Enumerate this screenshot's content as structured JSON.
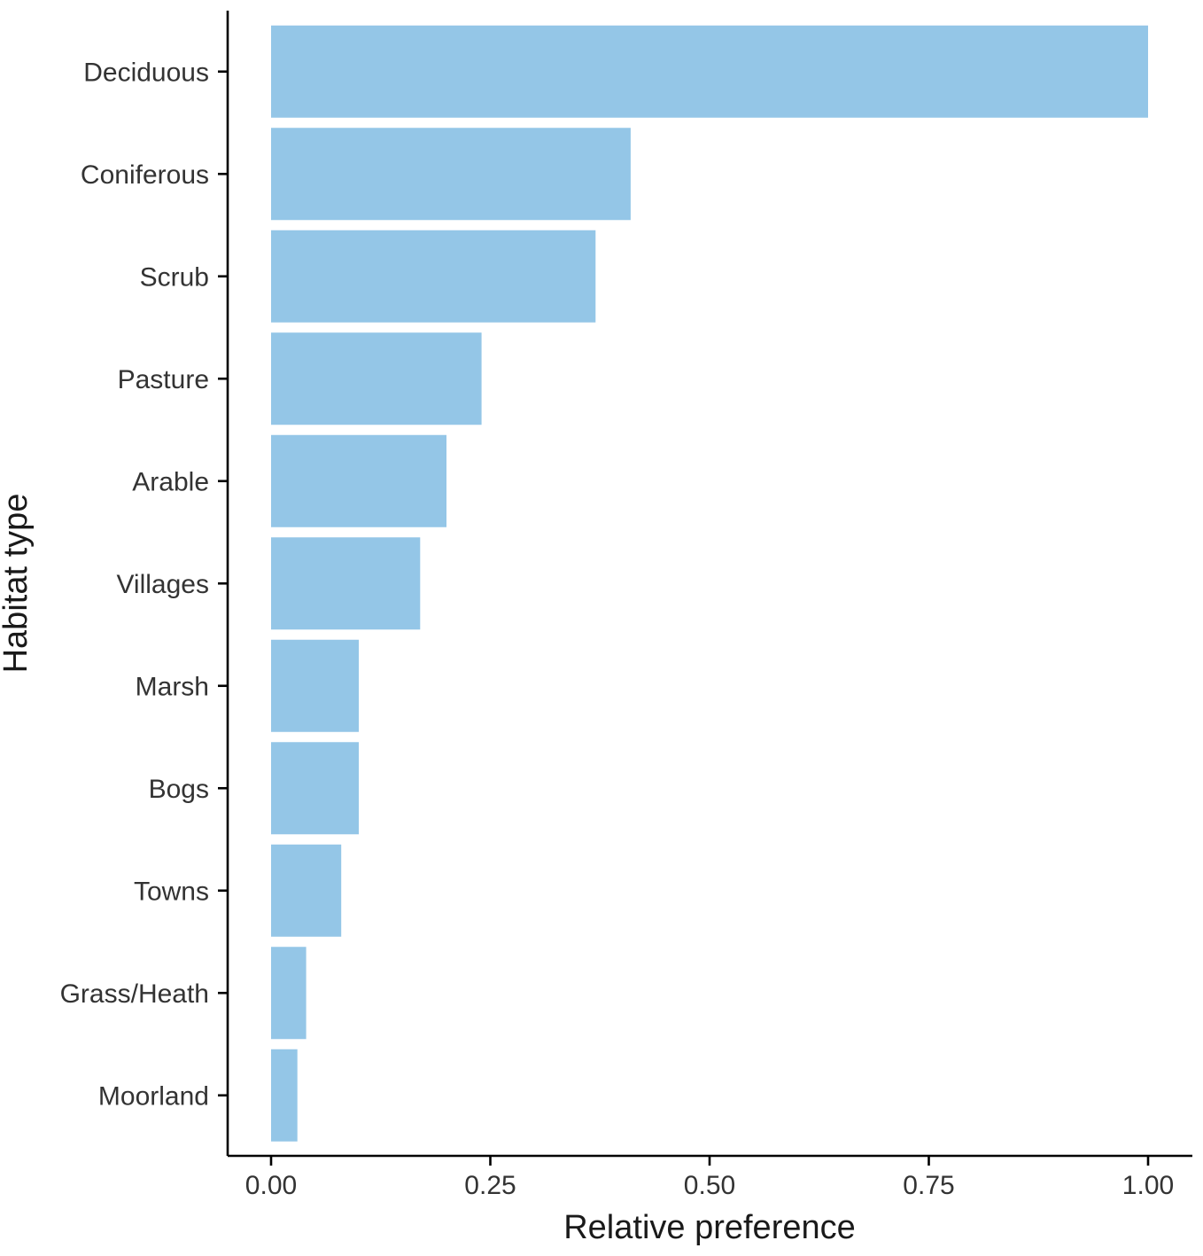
{
  "chart_data": {
    "type": "bar",
    "orientation": "horizontal",
    "title": "",
    "xlabel": "Relative preference",
    "ylabel": "Habitat type",
    "xlim": [
      0,
      1
    ],
    "xticks": [
      "0.00",
      "0.25",
      "0.50",
      "0.75",
      "1.00"
    ],
    "categories": [
      "Deciduous",
      "Coniferous",
      "Scrub",
      "Pasture",
      "Arable",
      "Villages",
      "Marsh",
      "Bogs",
      "Towns",
      "Grass/Heath",
      "Moorland"
    ],
    "values": [
      1.0,
      0.41,
      0.37,
      0.24,
      0.2,
      0.17,
      0.1,
      0.1,
      0.08,
      0.04,
      0.03
    ],
    "bar_color": "#94C6E7",
    "grid": false,
    "legend": "none"
  }
}
